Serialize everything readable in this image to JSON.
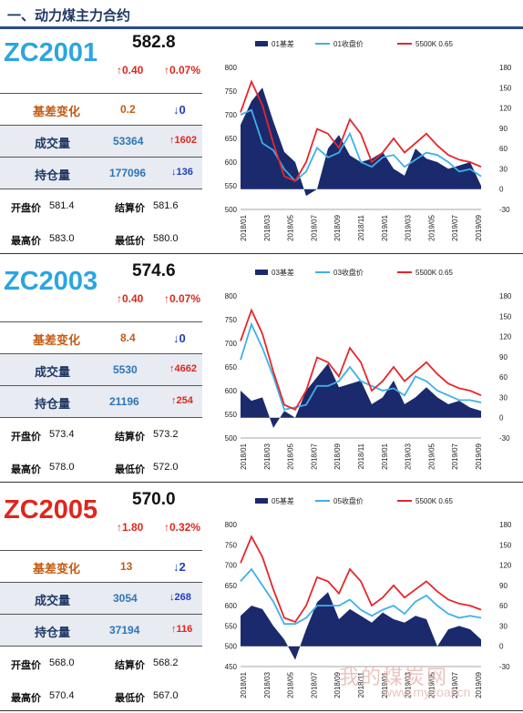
{
  "header": {
    "title": "一、动力煤主力合约"
  },
  "contracts": [
    {
      "code": "ZC2001",
      "code_color": "#2aa6e0",
      "price": "582.8",
      "chg_abs": "↑0.40",
      "chg_pct": "↑0.07%",
      "basis_label": "基差变化",
      "basis_val": "0.2",
      "basis_arrow": "↓0",
      "basis_arrow_dir": "down",
      "volume_label": "成交量",
      "volume_val": "53364",
      "volume_chg": "↑1602",
      "volume_dir": "up",
      "oi_label": "持仓量",
      "oi_val": "177096",
      "oi_chg": "↓136",
      "oi_dir": "down",
      "open_label": "开盘价",
      "open": "581.4",
      "settle_label": "结算价",
      "settle": "581.6",
      "high_label": "最高价",
      "high": "583.0",
      "low_label": "最低价",
      "low": "580.0"
    },
    {
      "code": "ZC2003",
      "code_color": "#2aa6e0",
      "price": "574.6",
      "chg_abs": "↑0.40",
      "chg_pct": "↑0.07%",
      "basis_label": "基差变化",
      "basis_val": "8.4",
      "basis_arrow": "↓0",
      "basis_arrow_dir": "down",
      "volume_label": "成交量",
      "volume_val": "5530",
      "volume_chg": "↑4662",
      "volume_dir": "up",
      "oi_label": "持仓量",
      "oi_val": "21196",
      "oi_chg": "↑254",
      "oi_dir": "up",
      "open_label": "开盘价",
      "open": "573.4",
      "settle_label": "结算价",
      "settle": "573.2",
      "high_label": "最高价",
      "high": "578.0",
      "low_label": "最低价",
      "low": "572.0"
    },
    {
      "code": "ZC2005",
      "code_color": "#e0261c",
      "price": "570.0",
      "chg_abs": "↑1.80",
      "chg_pct": "↑0.32%",
      "basis_label": "基差变化",
      "basis_val": "13",
      "basis_arrow": "↓2",
      "basis_arrow_dir": "down",
      "volume_label": "成交量",
      "volume_val": "3054",
      "volume_chg": "↓268",
      "volume_dir": "down",
      "oi_label": "持仓量",
      "oi_val": "37194",
      "oi_chg": "↑116",
      "oi_dir": "up",
      "open_label": "开盘价",
      "open": "568.0",
      "settle_label": "结算价",
      "settle": "568.2",
      "high_label": "最高价",
      "high": "570.4",
      "low_label": "最低价",
      "low": "567.0"
    }
  ],
  "colors": {
    "basis": "#1a2a6c",
    "close": "#3fb0e8",
    "spot": "#e8262a",
    "header": "#1f3864"
  },
  "chart_data": [
    {
      "type": "line",
      "title": "",
      "legend": [
        "01基差",
        "01收盘价",
        "5500K 0.65"
      ],
      "legend_position": "top",
      "x_labels": [
        "2018/01",
        "2018/03",
        "2018/05",
        "2018/07",
        "2018/09",
        "2018/11",
        "2019/01",
        "2019/03",
        "2019/05",
        "2019/07",
        "2019/09"
      ],
      "ylim_left": [
        500,
        800
      ],
      "yticks_left": [
        500,
        550,
        600,
        650,
        700,
        750,
        800
      ],
      "ylim_right": [
        -30,
        180
      ],
      "yticks_right": [
        -30,
        0,
        30,
        60,
        90,
        120,
        150,
        180
      ],
      "series": [
        {
          "name": "01基差",
          "axis": "right",
          "kind": "area",
          "values": [
            95,
            130,
            150,
            100,
            55,
            40,
            -10,
            0,
            60,
            80,
            50,
            40,
            45,
            55,
            30,
            20,
            60,
            45,
            40,
            30,
            35,
            40,
            5
          ]
        },
        {
          "name": "01收盘价",
          "axis": "left",
          "kind": "line",
          "values": [
            700,
            710,
            640,
            625,
            585,
            560,
            580,
            630,
            610,
            620,
            660,
            600,
            590,
            610,
            615,
            590,
            605,
            620,
            615,
            600,
            580,
            585,
            570
          ]
        },
        {
          "name": "5500K 0.65",
          "axis": "left",
          "kind": "line",
          "values": [
            705,
            770,
            720,
            640,
            570,
            560,
            600,
            670,
            660,
            630,
            690,
            660,
            600,
            620,
            650,
            620,
            640,
            660,
            635,
            615,
            605,
            600,
            590
          ]
        }
      ]
    },
    {
      "type": "line",
      "title": "",
      "legend": [
        "03基差",
        "03收盘价",
        "5500K 0.65"
      ],
      "legend_position": "top",
      "x_labels": [
        "2018/01",
        "2018/03",
        "2018/05",
        "2018/07",
        "2018/09",
        "2018/11",
        "2019/01",
        "2019/03",
        "2019/05",
        "2019/07",
        "2019/09"
      ],
      "ylim_left": [
        500,
        800
      ],
      "yticks_left": [
        500,
        550,
        600,
        650,
        700,
        750,
        800
      ],
      "ylim_right": [
        -30,
        180
      ],
      "yticks_right": [
        -30,
        0,
        30,
        60,
        90,
        120,
        150,
        180
      ],
      "series": [
        {
          "name": "03基差",
          "axis": "right",
          "kind": "area",
          "values": [
            40,
            25,
            30,
            -15,
            10,
            0,
            40,
            60,
            80,
            45,
            50,
            55,
            20,
            30,
            55,
            20,
            30,
            45,
            30,
            20,
            25,
            15,
            10
          ]
        },
        {
          "name": "03收盘价",
          "axis": "left",
          "kind": "line",
          "values": [
            665,
            740,
            690,
            630,
            560,
            565,
            570,
            610,
            610,
            620,
            650,
            620,
            610,
            600,
            605,
            590,
            630,
            620,
            600,
            590,
            580,
            580,
            575
          ]
        },
        {
          "name": "5500K 0.65",
          "axis": "left",
          "kind": "line",
          "values": [
            705,
            770,
            720,
            640,
            570,
            560,
            600,
            670,
            660,
            630,
            690,
            660,
            600,
            620,
            650,
            620,
            640,
            660,
            635,
            615,
            605,
            600,
            590
          ]
        }
      ]
    },
    {
      "type": "line",
      "title": "",
      "legend": [
        "05基差",
        "05收盘价",
        "5500K 0.65"
      ],
      "legend_position": "top",
      "x_labels": [
        "2018/01",
        "2018/03",
        "2018/05",
        "2018/07",
        "2018/09",
        "2018/11",
        "2019/01",
        "2019/03",
        "2019/05",
        "2019/07",
        "2019/09"
      ],
      "ylim_left": [
        450,
        800
      ],
      "yticks_left": [
        450,
        500,
        550,
        600,
        650,
        700,
        750,
        800
      ],
      "ylim_right": [
        -30,
        180
      ],
      "yticks_right": [
        -30,
        0,
        30,
        60,
        90,
        120,
        150,
        180
      ],
      "series": [
        {
          "name": "05基差",
          "axis": "right",
          "kind": "area",
          "values": [
            45,
            60,
            55,
            30,
            10,
            -20,
            25,
            65,
            80,
            40,
            55,
            45,
            35,
            50,
            40,
            35,
            45,
            40,
            0,
            25,
            30,
            25,
            10
          ]
        },
        {
          "name": "05收盘价",
          "axis": "left",
          "kind": "line",
          "values": [
            660,
            690,
            650,
            610,
            555,
            555,
            570,
            600,
            600,
            600,
            615,
            590,
            575,
            590,
            600,
            580,
            610,
            625,
            600,
            580,
            570,
            575,
            570
          ]
        },
        {
          "name": "5500K 0.65",
          "axis": "left",
          "kind": "line",
          "values": [
            705,
            770,
            720,
            640,
            570,
            560,
            600,
            670,
            660,
            630,
            690,
            660,
            600,
            620,
            650,
            620,
            640,
            660,
            635,
            615,
            605,
            600,
            590
          ]
        }
      ]
    }
  ],
  "watermark": {
    "text": "我的煤炭网",
    "url": "www.mycoal.cn"
  }
}
